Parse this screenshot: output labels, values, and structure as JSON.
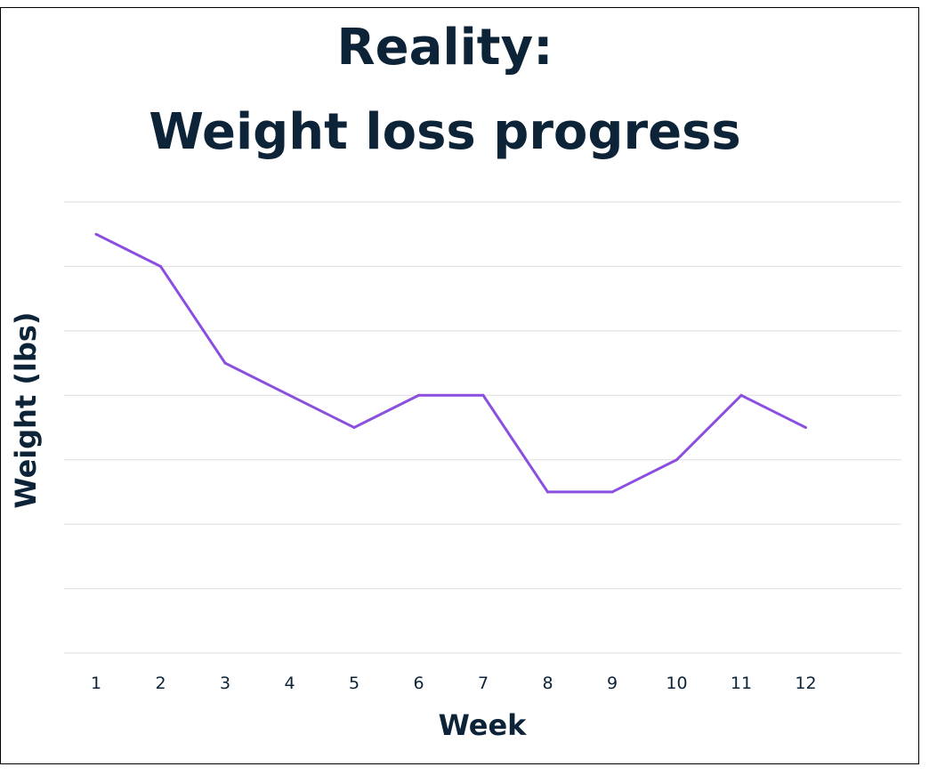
{
  "chart_data": {
    "type": "line",
    "title": "Reality:",
    "subtitle": "Weight loss progress",
    "xlabel": "Week",
    "ylabel": "Weight (lbs)",
    "x": [
      "1",
      "2",
      "3",
      "4",
      "5",
      "6",
      "7",
      "8",
      "9",
      "10",
      "11",
      "12"
    ],
    "series": [
      {
        "values": [
          6.5,
          6.0,
          4.5,
          4.0,
          3.5,
          4.0,
          4.0,
          2.5,
          2.5,
          3.0,
          4.0,
          3.5
        ],
        "color": "#8b4fe0"
      }
    ],
    "ylim": [
      0,
      7
    ],
    "grid": true,
    "y_tick_labels_shown": false,
    "gridline_color": "#dddddd",
    "text_color": "#0d2337"
  }
}
